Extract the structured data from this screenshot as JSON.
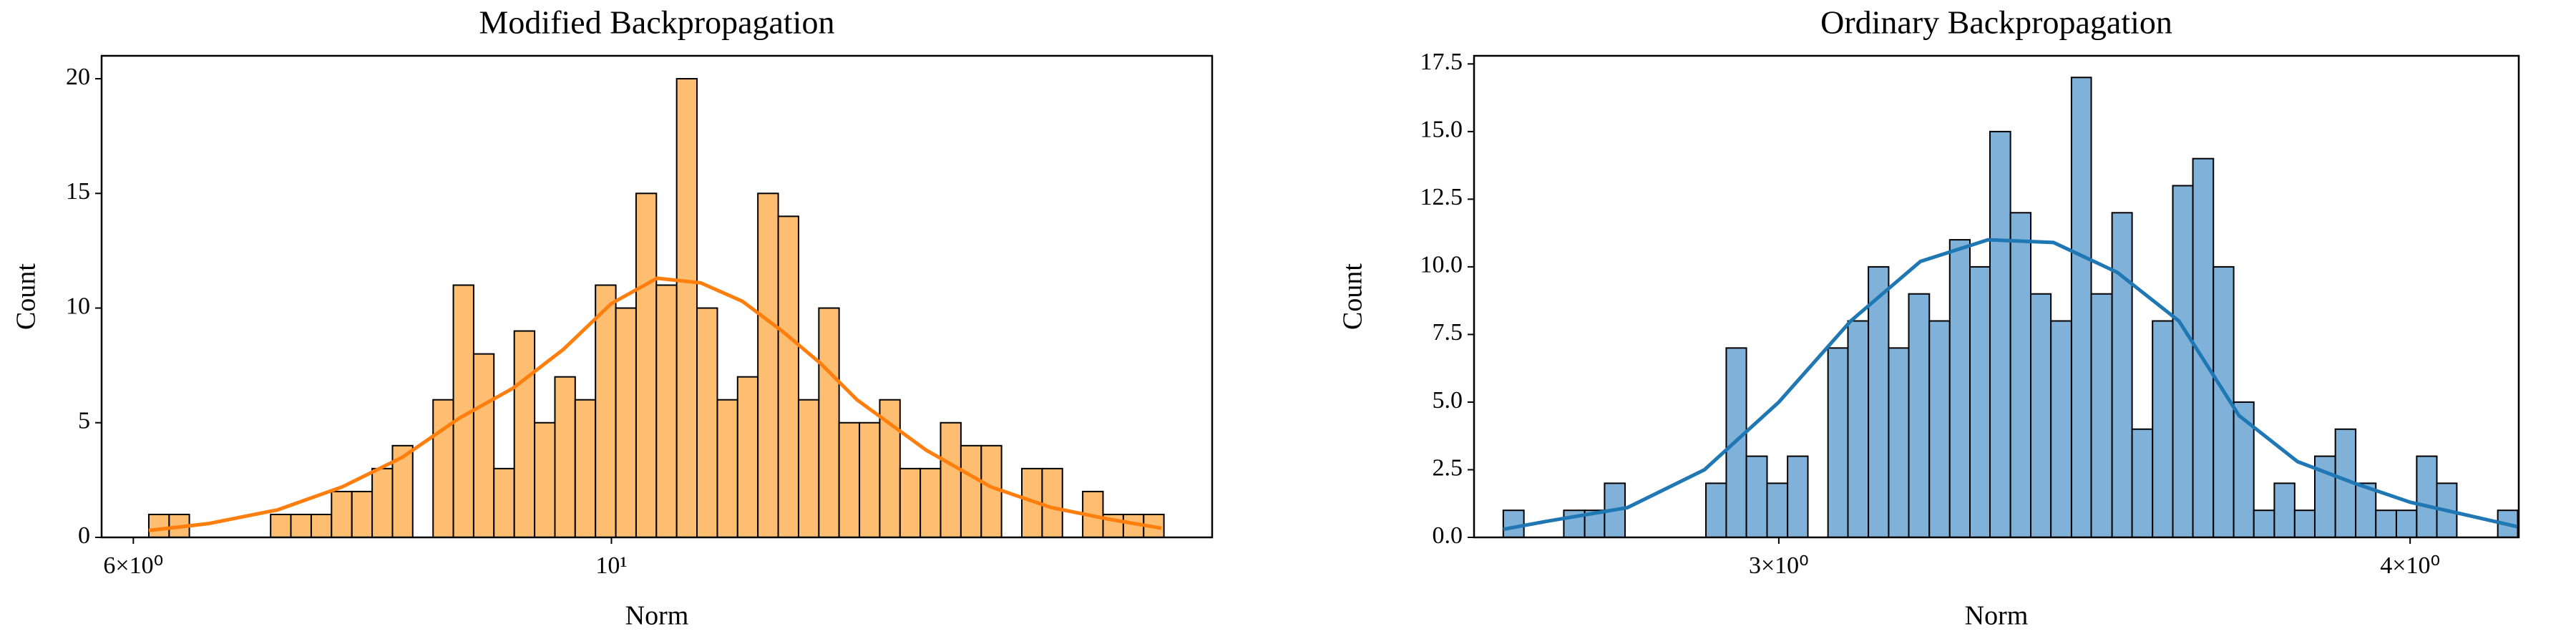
{
  "chart_data": [
    {
      "type": "histogram",
      "title": "Modified Backpropagation",
      "xlabel": "Norm",
      "ylabel": "Count",
      "xscale": "log",
      "fill": "#fdbe72",
      "color": "#ff7f0e",
      "bins": [
        6.1,
        6.234,
        6.37,
        6.51,
        6.653,
        6.799,
        6.948,
        7.1,
        7.256,
        7.415,
        7.578,
        7.744,
        7.914,
        8.087,
        8.265,
        8.446,
        8.631,
        8.82,
        9.014,
        9.212,
        9.414,
        9.62,
        9.831,
        10.047,
        10.267,
        10.492,
        10.722,
        10.957,
        11.198,
        11.443,
        11.694,
        11.951,
        12.213,
        12.481,
        12.754,
        13.034,
        13.32,
        13.612,
        13.91,
        14.215,
        14.527,
        14.846,
        15.171,
        15.504,
        15.844,
        16.191,
        16.546,
        16.909,
        17.28,
        17.659,
        18.046
      ],
      "values": [
        1,
        1,
        0,
        0,
        0,
        0,
        1,
        1,
        1,
        2,
        2,
        3,
        4,
        0,
        6,
        11,
        8,
        3,
        9,
        5,
        7,
        6,
        11,
        10,
        15,
        11,
        20,
        10,
        6,
        7,
        15,
        14,
        6,
        10,
        5,
        5,
        6,
        3,
        3,
        5,
        4,
        4,
        0,
        3,
        3,
        0,
        2,
        1,
        1,
        1
      ],
      "kde": {
        "x": [
          6.1,
          6.5,
          7,
          7.5,
          8,
          8.5,
          9,
          9.5,
          10,
          10.5,
          11,
          11.5,
          12,
          12.5,
          13,
          14,
          15,
          16,
          17,
          18
        ],
        "values": [
          0.3,
          0.6,
          1.2,
          2.2,
          3.5,
          5.2,
          6.5,
          8.2,
          10.2,
          11.3,
          11.1,
          10.3,
          9.0,
          7.6,
          6.0,
          3.8,
          2.2,
          1.3,
          0.8,
          0.4
        ]
      },
      "xlim": [
        5.8,
        19.0
      ],
      "ylim": [
        0,
        21
      ],
      "xticks": [
        {
          "value": 6,
          "label": "6×10⁰"
        },
        {
          "value": 10,
          "label": "10¹"
        }
      ],
      "yticks": [
        0,
        5,
        10,
        15,
        20
      ]
    },
    {
      "type": "histogram",
      "title": "Ordinary Backpropagation",
      "xlabel": "Norm",
      "ylabel": "Count",
      "xscale": "log",
      "fill": "#7fb1d9",
      "color": "#1f77b4",
      "bins": [
        2.646,
        2.671,
        2.695,
        2.72,
        2.746,
        2.771,
        2.797,
        2.823,
        2.849,
        2.876,
        2.902,
        2.929,
        2.956,
        2.984,
        3.012,
        3.04,
        3.068,
        3.096,
        3.125,
        3.154,
        3.183,
        3.213,
        3.243,
        3.273,
        3.303,
        3.334,
        3.365,
        3.396,
        3.428,
        3.459,
        3.492,
        3.524,
        3.557,
        3.59,
        3.623,
        3.657,
        3.691,
        3.725,
        3.76,
        3.795,
        3.83,
        3.866,
        3.902,
        3.938,
        3.975,
        4.012,
        4.049,
        4.086,
        4.124,
        4.163,
        4.201
      ],
      "values": [
        1,
        0,
        0,
        1,
        1,
        2,
        0,
        0,
        0,
        0,
        2,
        7,
        3,
        2,
        3,
        0,
        7,
        8,
        10,
        7,
        9,
        8,
        11,
        10,
        15,
        12,
        9,
        8,
        17,
        9,
        12,
        4,
        8,
        13,
        14,
        10,
        5,
        1,
        2,
        1,
        3,
        4,
        2,
        1,
        1,
        3,
        2,
        0,
        0,
        1
      ],
      "kde": {
        "x": [
          2.646,
          2.7,
          2.8,
          2.9,
          3.0,
          3.1,
          3.2,
          3.3,
          3.4,
          3.5,
          3.6,
          3.7,
          3.8,
          3.9,
          4.0,
          4.2
        ],
        "values": [
          0.3,
          0.6,
          1.1,
          2.5,
          5.0,
          8.0,
          10.2,
          11.0,
          10.9,
          9.8,
          8.0,
          4.5,
          2.8,
          2.0,
          1.3,
          0.4
        ]
      },
      "xlim": [
        2.611,
        4.203
      ],
      "ylim": [
        0,
        17.8
      ],
      "xticks": [
        {
          "value": 3,
          "label": "3×10⁰"
        },
        {
          "value": 4,
          "label": "4×10⁰"
        }
      ],
      "yticks": [
        {
          "value": 0,
          "label": "0.0"
        },
        {
          "value": 2.5,
          "label": "2.5"
        },
        {
          "value": 5,
          "label": "5.0"
        },
        {
          "value": 7.5,
          "label": "7.5"
        },
        {
          "value": 10,
          "label": "10.0"
        },
        {
          "value": 12.5,
          "label": "12.5"
        },
        {
          "value": 15,
          "label": "15.0"
        },
        {
          "value": 17.5,
          "label": "17.5"
        }
      ]
    }
  ]
}
